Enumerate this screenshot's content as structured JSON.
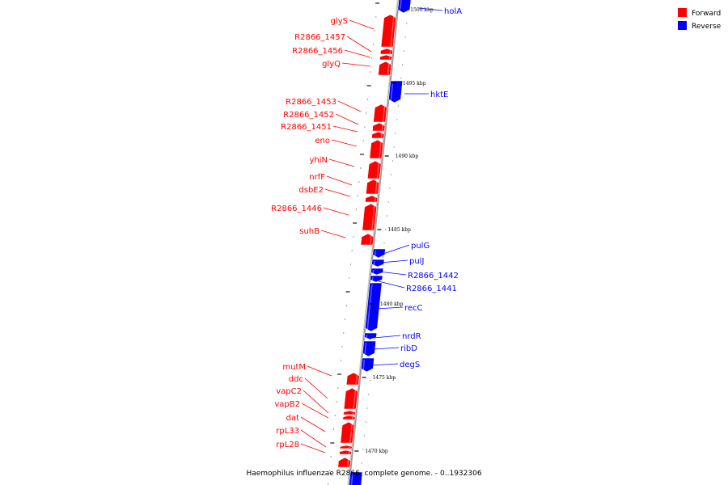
{
  "caption": "Haemophilus influenzae R2866, complete genome. - 0..1932306",
  "legend": [
    {
      "label": "Forward",
      "color": "#ff0000"
    },
    {
      "label": "Reverse",
      "color": "#0000ff"
    }
  ],
  "colors": {
    "forward": "#ff0000",
    "reverse": "#0000ff",
    "backbone": "#888888",
    "tick": "#000000"
  },
  "ticks": [
    {
      "label": "1500 kbp"
    },
    {
      "label": "1495 kbp"
    },
    {
      "label": "1490 kbp"
    },
    {
      "label": "1485 kbp"
    },
    {
      "label": "1480 kbp"
    },
    {
      "label": "1475 kbp"
    },
    {
      "label": "1470 kbp"
    }
  ],
  "genes": [
    {
      "name": "holA",
      "strand": "reverse"
    },
    {
      "name": "glyS",
      "strand": "forward"
    },
    {
      "name": "R2866_1457",
      "strand": "forward"
    },
    {
      "name": "R2866_1456",
      "strand": "forward"
    },
    {
      "name": "glyQ",
      "strand": "forward"
    },
    {
      "name": "hktE",
      "strand": "reverse"
    },
    {
      "name": "R2866_1453",
      "strand": "forward"
    },
    {
      "name": "R2866_1452",
      "strand": "forward"
    },
    {
      "name": "R2866_1451",
      "strand": "forward"
    },
    {
      "name": "eno",
      "strand": "forward"
    },
    {
      "name": "yhiN",
      "strand": "forward"
    },
    {
      "name": "nrfF",
      "strand": "forward"
    },
    {
      "name": "dsbE2",
      "strand": "forward"
    },
    {
      "name": "R2866_1446",
      "strand": "forward"
    },
    {
      "name": "suhB",
      "strand": "forward"
    },
    {
      "name": "pulG",
      "strand": "reverse"
    },
    {
      "name": "pulJ",
      "strand": "reverse"
    },
    {
      "name": "R2866_1442",
      "strand": "reverse"
    },
    {
      "name": "R2866_1441",
      "strand": "reverse"
    },
    {
      "name": "recC",
      "strand": "reverse"
    },
    {
      "name": "nrdR",
      "strand": "reverse"
    },
    {
      "name": "ribD",
      "strand": "reverse"
    },
    {
      "name": "degS",
      "strand": "reverse"
    },
    {
      "name": "mutM",
      "strand": "forward"
    },
    {
      "name": "ddc",
      "strand": "forward"
    },
    {
      "name": "vapC2",
      "strand": "forward"
    },
    {
      "name": "vapB2",
      "strand": "forward"
    },
    {
      "name": "dat",
      "strand": "forward"
    },
    {
      "name": "rpL33",
      "strand": "forward"
    },
    {
      "name": "rpL28",
      "strand": "forward"
    }
  ]
}
